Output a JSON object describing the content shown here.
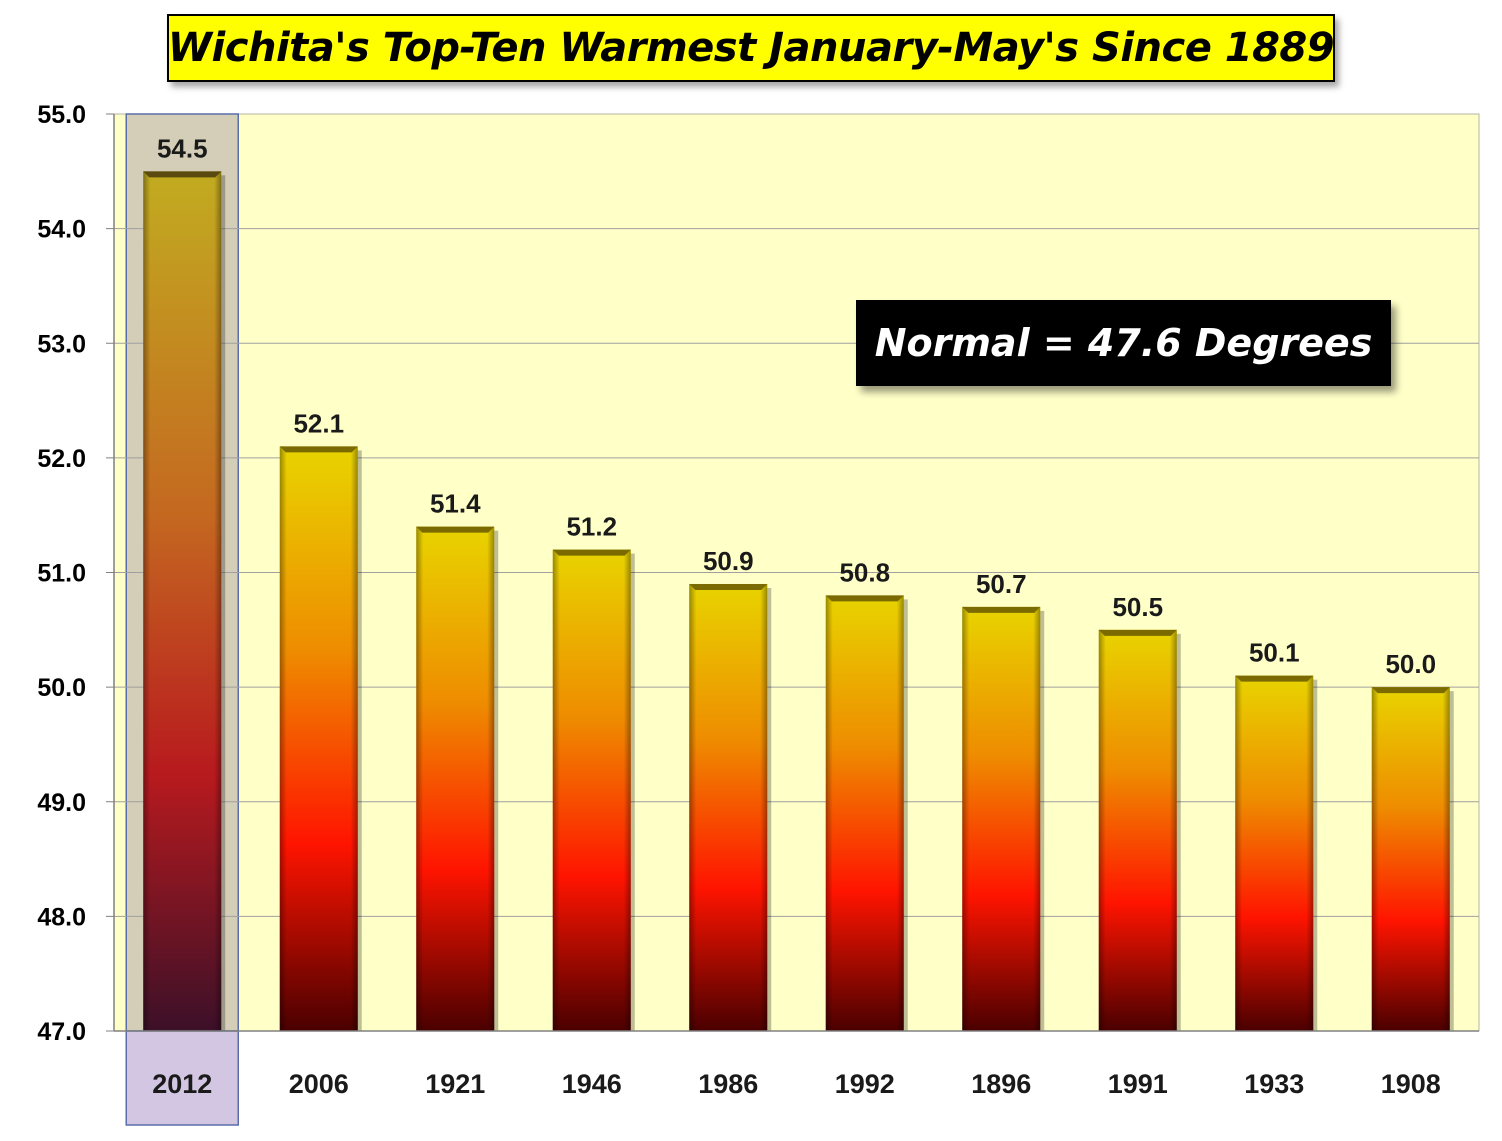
{
  "chart_data": {
    "type": "bar",
    "title": "Wichita's Top-Ten Warmest January-May's Since 1889",
    "categories": [
      "2012",
      "2006",
      "1921",
      "1946",
      "1986",
      "1992",
      "1896",
      "1991",
      "1933",
      "1908"
    ],
    "values": [
      54.5,
      52.1,
      51.4,
      51.2,
      50.9,
      50.8,
      50.7,
      50.5,
      50.1,
      50.0
    ],
    "value_labels": [
      "54.5",
      "52.1",
      "51.4",
      "51.2",
      "50.9",
      "50.8",
      "50.7",
      "50.5",
      "50.1",
      "50.0"
    ],
    "xlabel": "",
    "ylabel": "",
    "ylim": [
      47.0,
      55.0
    ],
    "yticks": [
      "47.0",
      "48.0",
      "49.0",
      "50.0",
      "51.0",
      "52.0",
      "53.0",
      "54.0",
      "55.0"
    ],
    "grid": true,
    "highlighted_category": "2012",
    "annotation": "Normal = 47.6 Degrees"
  },
  "colors": {
    "plot_background": "#ffffc8",
    "gridline": "#a0a0a0",
    "bar_top": "#e8d000",
    "bar_mid": "#ff1a00",
    "bar_bottom": "#5a0000",
    "highlight_fill": "#b4a0d2",
    "highlight_border": "#5a6eaa",
    "title_background": "#ffff00",
    "annotation_background": "#000000"
  }
}
